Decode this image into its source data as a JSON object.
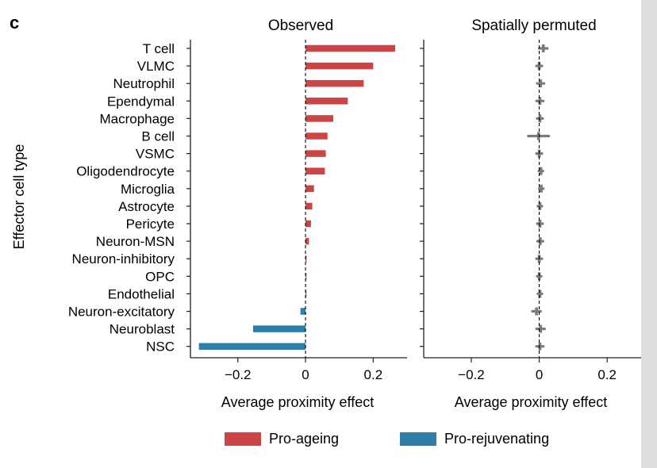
{
  "panel_label": "c",
  "chart_data": [
    {
      "type": "bar",
      "orientation": "horizontal",
      "title": "Observed",
      "xlabel": "Average proximity effect",
      "ylabel": "Effector cell type",
      "xlim": [
        -0.34,
        0.3
      ],
      "xticks": [
        -0.2,
        0,
        0.2
      ],
      "xtick_labels": [
        "−0.2",
        "0",
        "0.2"
      ],
      "categories": [
        "T cell",
        "VLMC",
        "Neutrophil",
        "Ependymal",
        "Macrophage",
        "B cell",
        "VSMC",
        "Oligodendrocyte",
        "Microglia",
        "Astrocyte",
        "Pericyte",
        "Neuron-MSN",
        "Neuron-inhibitory",
        "OPC",
        "Endothelial",
        "Neuron-excitatory",
        "Neuroblast",
        "NSC"
      ],
      "values": [
        0.265,
        0.2,
        0.172,
        0.125,
        0.082,
        0.065,
        0.06,
        0.057,
        0.025,
        0.02,
        0.016,
        0.01,
        0.003,
        0.002,
        0.001,
        -0.015,
        -0.155,
        -0.315
      ],
      "reference_line": 0
    },
    {
      "type": "scatter",
      "title": "Spatially permuted",
      "xlabel": "Average proximity effect",
      "xlim": [
        -0.34,
        0.3
      ],
      "xticks": [
        -0.2,
        0,
        0.2
      ],
      "xtick_labels": [
        "−0.2",
        "0",
        "0.2"
      ],
      "categories": [
        "T cell",
        "VLMC",
        "Neutrophil",
        "Ependymal",
        "Macrophage",
        "B cell",
        "VSMC",
        "Oligodendrocyte",
        "Microglia",
        "Astrocyte",
        "Pericyte",
        "Neuron-MSN",
        "Neuron-inhibitory",
        "OPC",
        "Endothelial",
        "Neuron-excitatory",
        "Neuroblast",
        "NSC"
      ],
      "means": [
        0.012,
        0.0,
        0.004,
        0.002,
        0.002,
        -0.002,
        0.0,
        0.005,
        0.006,
        0.002,
        0.002,
        0.003,
        0.0,
        0.0,
        0.002,
        -0.008,
        0.004,
        0.002
      ],
      "errors": [
        0.012,
        0.008,
        0.01,
        0.01,
        0.008,
        0.03,
        0.008,
        0.006,
        0.006,
        0.006,
        0.008,
        0.008,
        0.008,
        0.006,
        0.006,
        0.012,
        0.012,
        0.01
      ],
      "reference_line": 0
    }
  ],
  "legend": [
    {
      "label": "Pro-ageing",
      "color": "#cc4444"
    },
    {
      "label": "Pro-rejuvenating",
      "color": "#2d7ea8"
    }
  ],
  "colors": {
    "pro_ageing": "#cc4444",
    "pro_rejuvenating": "#2d7ea8",
    "permuted": "#7a7a7a",
    "axis": "#222222"
  },
  "page_edge_color": "#dedede"
}
